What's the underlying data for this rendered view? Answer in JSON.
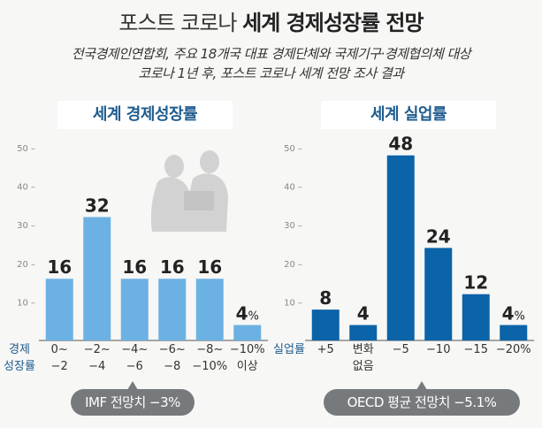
{
  "header": {
    "title_light": "포스트 코로나",
    "title_bold": "세계 경제성장률 전망",
    "subtitle_line1": "전국경제인연합회, 주요 18개국 대표 경제단체와 국제기구·경제협의체 대상",
    "subtitle_line2": "코로나 1년 후, 포스트 코로나 세계 전망 조사 결과"
  },
  "colors": {
    "growth_bar": "#6cb1e3",
    "unemployment_bar": "#0b63a8",
    "panel_title_text": "#1f5c8f",
    "callout_bg": "#777a7c",
    "axis_label": "#1f5c8f"
  },
  "icons": {
    "silhouette": "two-businessmen-silhouette-icon"
  },
  "chart_data": [
    {
      "type": "bar",
      "title": "세계 경제성장률",
      "axis_caption": [
        "경제",
        "성장률"
      ],
      "categories": [
        [
          "0~",
          "−2"
        ],
        [
          "−2~",
          "−4"
        ],
        [
          "−4~",
          "−6"
        ],
        [
          "−6~",
          "−8"
        ],
        [
          "−8~",
          "−10%"
        ],
        [
          "−10%",
          "이상"
        ]
      ],
      "values": [
        16,
        32,
        16,
        16,
        16,
        4
      ],
      "value_labels": [
        "16",
        "32",
        "16",
        "16",
        "16",
        "4"
      ],
      "last_label_unit": "%",
      "ylim": [
        0,
        50
      ],
      "yticks": [
        10,
        20,
        30,
        40,
        50
      ],
      "grid": false,
      "callout": "IMF 전망치 −3%"
    },
    {
      "type": "bar",
      "title": "세계 실업률",
      "axis_caption": [
        "실업률"
      ],
      "categories": [
        [
          "+5"
        ],
        [
          "변화",
          "없음"
        ],
        [
          "−5"
        ],
        [
          "−10"
        ],
        [
          "−15"
        ],
        [
          "−20%"
        ]
      ],
      "values": [
        8,
        4,
        48,
        24,
        12,
        4
      ],
      "value_labels": [
        "8",
        "4",
        "48",
        "24",
        "12",
        "4"
      ],
      "last_label_unit": "%",
      "ylim": [
        0,
        50
      ],
      "yticks": [
        10,
        20,
        30,
        40,
        50
      ],
      "grid": false,
      "callout": "OECD 평균 전망치 −5.1%"
    }
  ]
}
